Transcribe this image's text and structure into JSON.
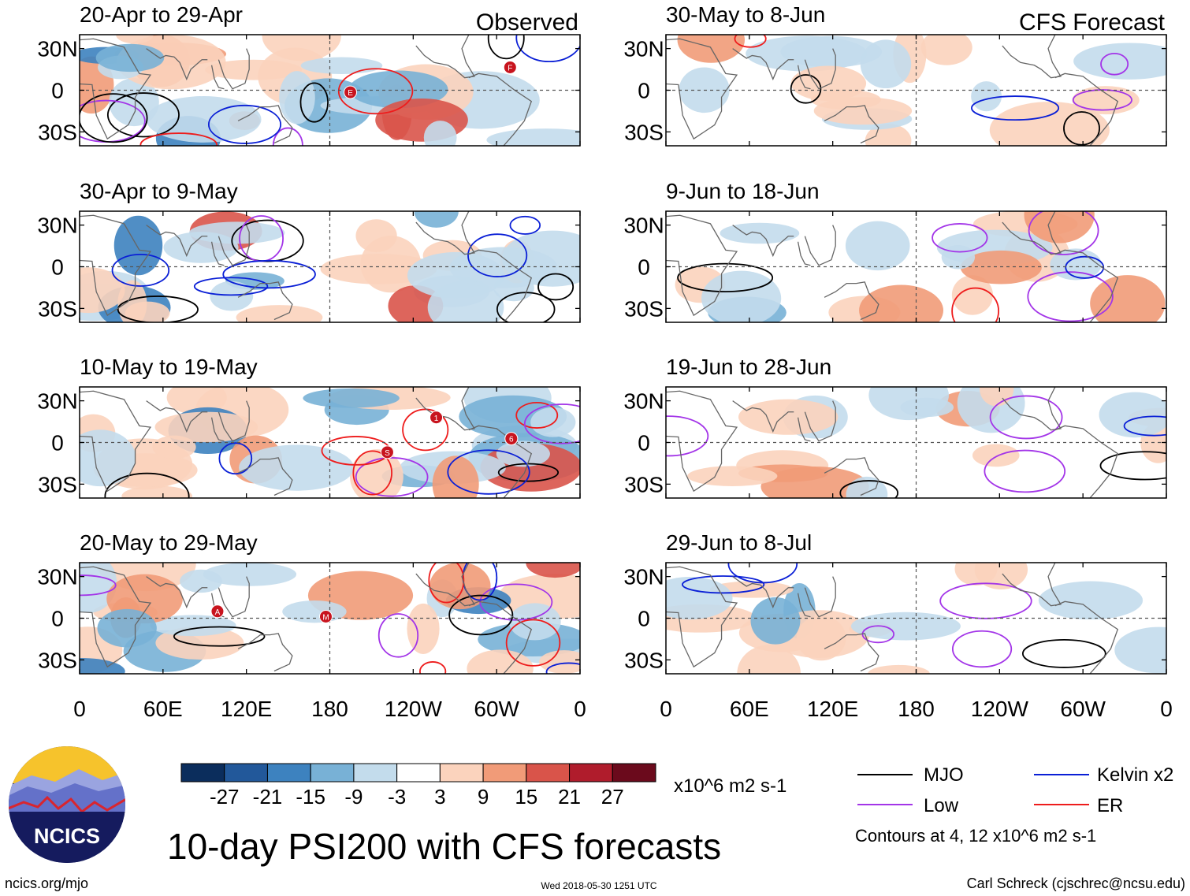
{
  "chart_data": {
    "type": "heatmap",
    "title": "10-day PSI200 with CFS forecasts",
    "units": "x10^6 m2 s-1",
    "observed_label": "Observed",
    "forecast_label": "CFS Forecast",
    "x_ticks": [
      "0",
      "60E",
      "120E",
      "180",
      "120W",
      "60W",
      "0"
    ],
    "y_ticks": [
      "30N",
      "0",
      "30S"
    ],
    "panels": [
      {
        "period": "20-Apr to 29-Apr",
        "column": "observed",
        "storms": [
          "F",
          "E"
        ]
      },
      {
        "period": "30-Apr to 9-May",
        "column": "observed",
        "storms": []
      },
      {
        "period": "10-May to 19-May",
        "column": "observed",
        "storms": [
          "S",
          "6",
          "1"
        ]
      },
      {
        "period": "20-May to 29-May",
        "column": "observed",
        "storms": [
          "M",
          "A"
        ]
      },
      {
        "period": "30-May to 8-Jun",
        "column": "forecast",
        "storms": []
      },
      {
        "period": "9-Jun to 18-Jun",
        "column": "forecast",
        "storms": []
      },
      {
        "period": "19-Jun to 28-Jun",
        "column": "forecast",
        "storms": []
      },
      {
        "period": "29-Jun to 8-Jul",
        "column": "forecast",
        "storms": []
      }
    ],
    "colorbar": {
      "ticks": [
        "-27",
        "-21",
        "-15",
        "-9",
        "-3",
        "3",
        "9",
        "15",
        "21",
        "27"
      ],
      "colors": [
        "#0b2d5c",
        "#22589a",
        "#3d82bf",
        "#78b1d6",
        "#c3dcec",
        "#ffffff",
        "#fbd3bd",
        "#f19b78",
        "#d9544a",
        "#b01c2c",
        "#6b0a1c"
      ]
    },
    "legend": [
      {
        "label": "MJO",
        "color": "#000000"
      },
      {
        "label": "Kelvin x2",
        "color": "#0a1fd6"
      },
      {
        "label": "Low",
        "color": "#a335e8"
      },
      {
        "label": "ER",
        "color": "#ee1c1c"
      }
    ],
    "contour_note": "Contours at 4, 12 x10^6 m2 s-1"
  },
  "footer": {
    "logo_text": "NCICS",
    "url": "ncics.org/mjo",
    "timestamp": "Wed 2018-05-30 1251 UTC",
    "credit": "Carl Schreck (cjschrec@ncsu.edu)"
  }
}
